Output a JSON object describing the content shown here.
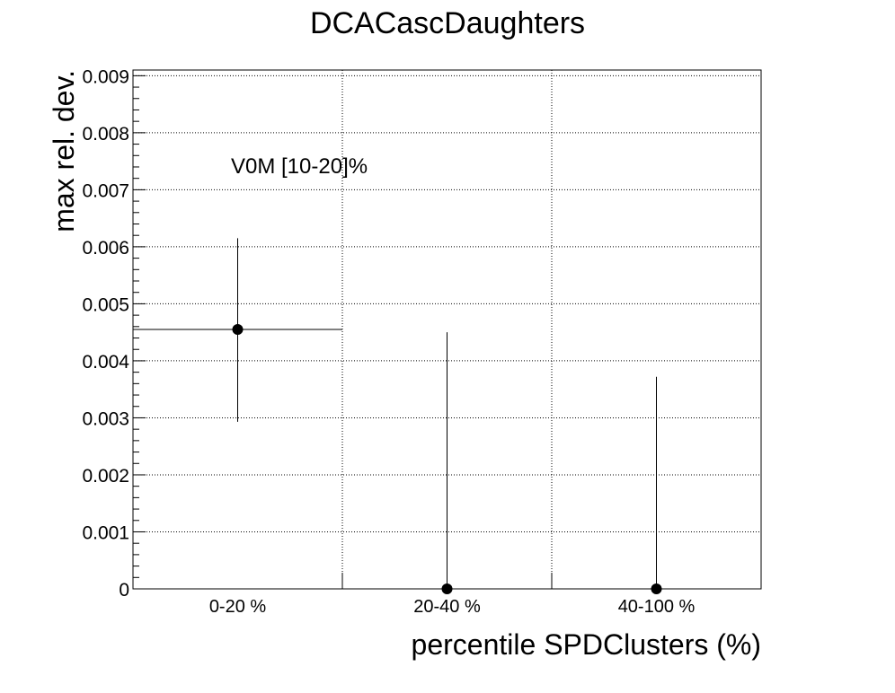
{
  "chart_data": {
    "type": "scatter",
    "title": "DCACascDaughters",
    "xlabel": "percentile SPDClusters (%)",
    "ylabel": "max rel. dev.",
    "annotation": "V0M [10-20]%",
    "categories": [
      "0-20 %",
      "20-40 %",
      "40-100 %"
    ],
    "series": [
      {
        "values": [
          0.00455,
          0.0,
          0.0
        ],
        "y_err_up": [
          0.0016,
          0.0045,
          0.00372
        ],
        "y_err_down": [
          0.00162,
          0.0,
          0.0
        ],
        "x_err_half_bin": [
          true,
          false,
          false
        ]
      }
    ],
    "ylim": [
      0,
      0.0091
    ],
    "yticks": [
      {
        "value": 0,
        "label": "0"
      },
      {
        "value": 0.001,
        "label": "0.001"
      },
      {
        "value": 0.002,
        "label": "0.002"
      },
      {
        "value": 0.003,
        "label": "0.003"
      },
      {
        "value": 0.004,
        "label": "0.004"
      },
      {
        "value": 0.005,
        "label": "0.005"
      },
      {
        "value": 0.006,
        "label": "0.006"
      },
      {
        "value": 0.007,
        "label": "0.007"
      },
      {
        "value": 0.008,
        "label": "0.008"
      },
      {
        "value": 0.009,
        "label": "0.009"
      }
    ],
    "grid": true,
    "marker_color": "#000000"
  }
}
